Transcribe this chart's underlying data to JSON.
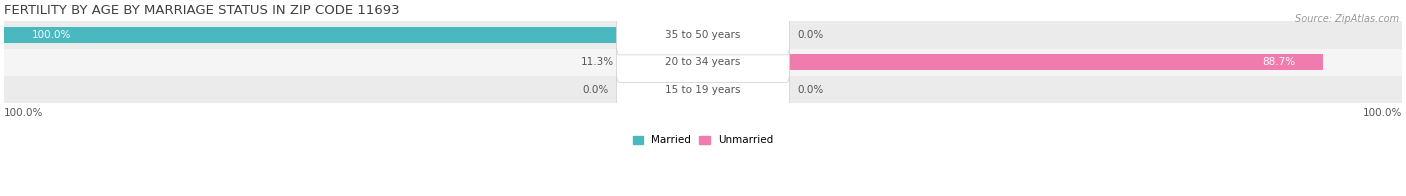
{
  "title": "FERTILITY BY AGE BY MARRIAGE STATUS IN ZIP CODE 11693",
  "source": "Source: ZipAtlas.com",
  "age_groups": [
    "15 to 19 years",
    "20 to 34 years",
    "35 to 50 years"
  ],
  "married_values": [
    0.0,
    11.3,
    100.0
  ],
  "unmarried_values": [
    0.0,
    88.7,
    0.0
  ],
  "married_color": "#4ab8bf",
  "unmarried_color": "#f07cae",
  "row_bg_even": "#ebebeb",
  "row_bg_odd": "#f5f5f5",
  "title_fontsize": 9.5,
  "label_fontsize": 7.5,
  "tick_fontsize": 7.5,
  "source_fontsize": 7.0,
  "legend_fontsize": 7.5,
  "bar_height": 0.58,
  "figsize": [
    14.06,
    1.96
  ],
  "dpi": 100,
  "left_axis_label": "100.0%",
  "right_axis_label": "100.0%",
  "title_color": "#404040",
  "label_color": "#555555",
  "value_color_inside": "#ffffff",
  "value_color_outside": "#555555"
}
